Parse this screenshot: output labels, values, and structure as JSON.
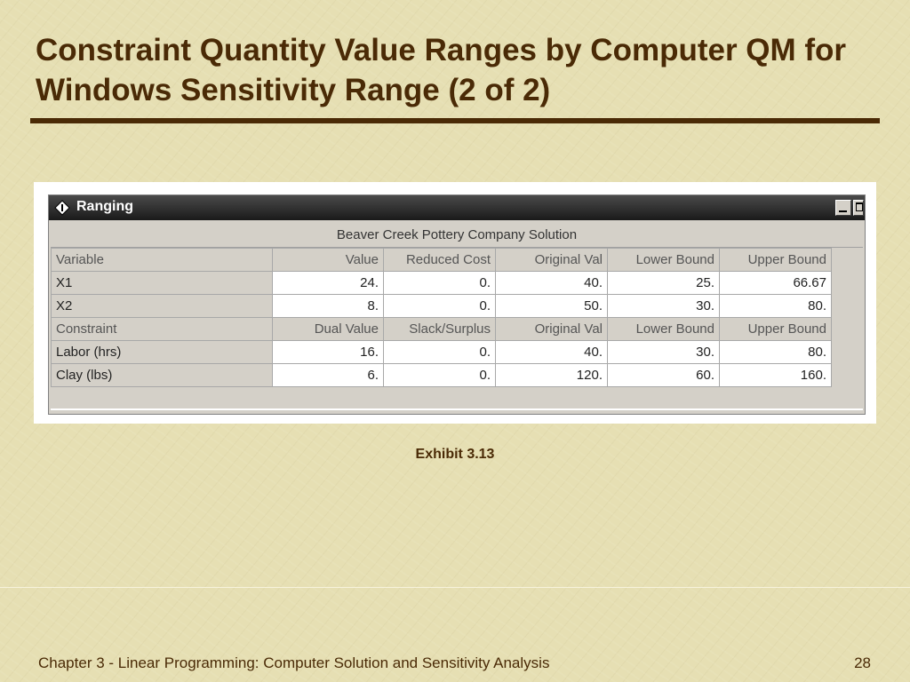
{
  "slide": {
    "title": "Constraint Quantity Value Ranges by Computer QM for Windows Sensitivity Range (2 of 2)",
    "caption": "Exhibit 3.13",
    "footer": "Chapter 3 - Linear Programming:  Computer Solution and Sensitivity Analysis",
    "page_number": "28"
  },
  "window": {
    "title": "Ranging",
    "solution_title": "Beaver Creek Pottery Company Solution"
  },
  "table": {
    "variable_header": [
      "Variable",
      "Value",
      "Reduced Cost",
      "Original Val",
      "Lower Bound",
      "Upper Bound"
    ],
    "variable_rows": [
      [
        "X1",
        "24.",
        "0.",
        "40.",
        "25.",
        "66.67"
      ],
      [
        "X2",
        "8.",
        "0.",
        "50.",
        "30.",
        "80."
      ]
    ],
    "constraint_header": [
      "Constraint",
      "Dual Value",
      "Slack/Surplus",
      "Original Val",
      "Lower Bound",
      "Upper Bound"
    ],
    "constraint_rows": [
      [
        "Labor (hrs)",
        "16.",
        "0.",
        "40.",
        "30.",
        "80."
      ],
      [
        "Clay (lbs)",
        "6.",
        "0.",
        "120.",
        "60.",
        "160."
      ]
    ]
  },
  "colors": {
    "background": "#e6dfb3",
    "title": "#4a2a06",
    "titlebar": "#1a1a1a"
  },
  "icons": [
    "app-diamond-icon",
    "minimize-icon",
    "maximize-icon"
  ]
}
